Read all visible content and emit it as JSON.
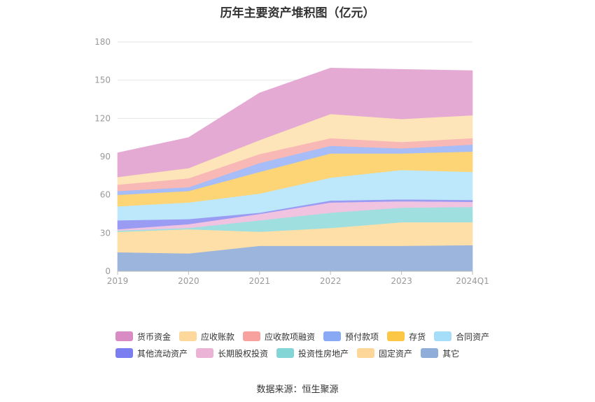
{
  "chart_data": {
    "type": "area",
    "title": "历年主要资产堆积图（亿元）",
    "stacked": true,
    "x": [
      "2019",
      "2020",
      "2021",
      "2022",
      "2023",
      "2024Q1"
    ],
    "ylim": [
      0,
      180
    ],
    "yticks": [
      0,
      30,
      60,
      90,
      120,
      150,
      180
    ],
    "grid": true,
    "legend_position": "bottom",
    "series": [
      {
        "name": "其它",
        "color": "#9bb5dd",
        "values": [
          15,
          14,
          20,
          20,
          20,
          20.5
        ]
      },
      {
        "name": "固定资产",
        "color": "#fedfa8",
        "values": [
          16,
          19,
          11,
          14,
          18.5,
          18
        ]
      },
      {
        "name": "投资性房地产",
        "color": "#9fdfdf",
        "values": [
          1,
          1,
          9,
          12,
          11.5,
          12
        ]
      },
      {
        "name": "长期股权投资",
        "color": "#f0c4e0",
        "values": [
          1,
          3,
          5,
          8,
          5,
          4
        ]
      },
      {
        "name": "其他流动资产",
        "color": "#9a9bf3",
        "values": [
          7,
          4,
          1,
          1.5,
          1.5,
          1.5
        ]
      },
      {
        "name": "合同资产",
        "color": "#bde7fb",
        "values": [
          11,
          13,
          15,
          18,
          23,
          22
        ]
      },
      {
        "name": "存货",
        "color": "#fdd576",
        "values": [
          9,
          9,
          17,
          19,
          13,
          16
        ]
      },
      {
        "name": "预付款项",
        "color": "#a7bdf7",
        "values": [
          3,
          3,
          7,
          6,
          4,
          5.5
        ]
      },
      {
        "name": "应收款项融资",
        "color": "#f8b8b5",
        "values": [
          5,
          7,
          7,
          6,
          5,
          5
        ]
      },
      {
        "name": "应收账款",
        "color": "#fde4b9",
        "values": [
          6,
          8,
          11,
          19,
          18,
          18
        ]
      },
      {
        "name": "货币资金",
        "color": "#e4aad3",
        "values": [
          19,
          24,
          37,
          36,
          39,
          35
        ]
      }
    ],
    "legend_order": [
      "货币资金",
      "应收账款",
      "应收款项融资",
      "预付款项",
      "存货",
      "合同资产",
      "其他流动资产",
      "长期股权投资",
      "投资性房地产",
      "固定资产",
      "其它"
    ],
    "legend_colors": {
      "货币资金": "#d98cc3",
      "应收账款": "#fdd89c",
      "应收款项融资": "#f7a29e",
      "预付款项": "#8aa9f5",
      "存货": "#fcc745",
      "合同资产": "#a6def9",
      "其他流动资产": "#7b7ef0",
      "长期股权投资": "#ebb4d6",
      "投资性房地产": "#84d6d6",
      "固定资产": "#fdd69a",
      "其它": "#8fadd9"
    }
  },
  "source_text": "数据来源：恒生聚源"
}
